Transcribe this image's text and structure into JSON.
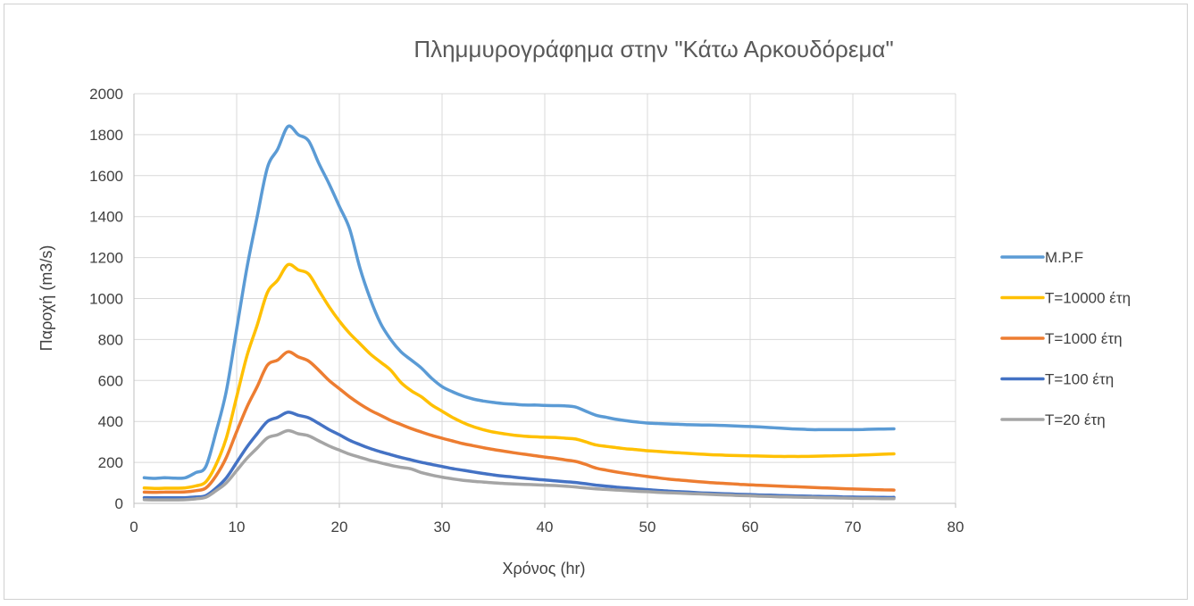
{
  "chart_data": {
    "type": "line",
    "title": "Πλημμυρογράφημα στην \"Κάτω Αρκουδόρεμα\"",
    "xlabel": "Χρόνος (hr)",
    "ylabel": "Παροχή (m3/s)",
    "xlim": [
      0,
      80
    ],
    "ylim": [
      0,
      2000
    ],
    "xticks": [
      "0",
      "10",
      "20",
      "30",
      "40",
      "50",
      "60",
      "70",
      "80"
    ],
    "yticks": [
      "0",
      "200",
      "400",
      "600",
      "800",
      "1000",
      "1200",
      "1400",
      "1600",
      "1800",
      "2000"
    ],
    "grid": true,
    "legend_position": "right",
    "x": [
      1,
      2,
      3,
      4,
      5,
      6,
      7,
      8,
      9,
      10,
      11,
      12,
      13,
      14,
      15,
      16,
      17,
      18,
      19,
      20,
      21,
      22,
      23,
      24,
      25,
      26,
      27,
      28,
      29,
      30,
      31,
      32,
      33,
      34,
      35,
      36,
      37,
      38,
      39,
      40,
      41,
      42,
      43,
      44,
      45,
      46,
      47,
      48,
      49,
      50,
      51,
      52,
      53,
      54,
      55,
      56,
      57,
      58,
      59,
      60,
      61,
      62,
      63,
      64,
      65,
      66,
      67,
      68,
      69,
      70,
      71,
      72,
      73,
      74
    ],
    "series": [
      {
        "name": "M.P.F",
        "color": "#5b9bd5",
        "values": [
          125,
          122,
          125,
          123,
          125,
          150,
          180,
          350,
          550,
          850,
          1150,
          1400,
          1640,
          1730,
          1840,
          1800,
          1770,
          1660,
          1560,
          1450,
          1340,
          1150,
          1000,
          880,
          800,
          740,
          700,
          660,
          610,
          570,
          545,
          525,
          510,
          500,
          493,
          487,
          484,
          480,
          480,
          478,
          477,
          476,
          470,
          450,
          430,
          420,
          410,
          403,
          397,
          392,
          390,
          388,
          386,
          384,
          383,
          382,
          381,
          379,
          377,
          375,
          373,
          370,
          367,
          364,
          362,
          360,
          360,
          360,
          360,
          360,
          361,
          362,
          363,
          364
        ]
      },
      {
        "name": "T=10000 έτη",
        "color": "#ffc000",
        "values": [
          75,
          73,
          74,
          74,
          76,
          85,
          105,
          190,
          320,
          520,
          720,
          870,
          1030,
          1090,
          1165,
          1140,
          1120,
          1040,
          960,
          890,
          830,
          780,
          730,
          690,
          650,
          590,
          550,
          520,
          480,
          450,
          420,
          395,
          375,
          360,
          348,
          340,
          333,
          328,
          325,
          323,
          322,
          318,
          314,
          300,
          285,
          278,
          272,
          266,
          262,
          257,
          254,
          250,
          247,
          244,
          241,
          238,
          236,
          234,
          233,
          232,
          231,
          230,
          229,
          229,
          229,
          230,
          231,
          232,
          233,
          234,
          236,
          238,
          240,
          242
        ]
      },
      {
        "name": "T=1000 έτη",
        "color": "#ed7d31",
        "values": [
          55,
          54,
          55,
          55,
          56,
          62,
          75,
          135,
          225,
          350,
          470,
          570,
          675,
          700,
          740,
          715,
          695,
          650,
          600,
          560,
          520,
          485,
          455,
          430,
          405,
          385,
          365,
          348,
          332,
          318,
          305,
          292,
          282,
          272,
          263,
          255,
          247,
          240,
          233,
          226,
          220,
          212,
          205,
          190,
          172,
          162,
          153,
          145,
          138,
          131,
          125,
          119,
          114,
          110,
          106,
          102,
          99,
          96,
          93,
          90,
          88,
          86,
          84,
          82,
          80,
          78,
          76,
          74,
          72,
          70,
          69,
          67,
          66,
          65
        ]
      },
      {
        "name": "T=100 έτη",
        "color": "#4472c4",
        "values": [
          28,
          27,
          27,
          27,
          28,
          31,
          38,
          75,
          125,
          200,
          275,
          340,
          400,
          420,
          445,
          430,
          418,
          390,
          360,
          335,
          308,
          287,
          268,
          252,
          238,
          224,
          212,
          200,
          190,
          180,
          170,
          162,
          154,
          146,
          139,
          133,
          128,
          123,
          118,
          114,
          110,
          106,
          102,
          96,
          89,
          84,
          79,
          75,
          71,
          67,
          63,
          60,
          57,
          55,
          52,
          50,
          48,
          46,
          44,
          43,
          41,
          40,
          38,
          37,
          36,
          35,
          34,
          33,
          32,
          31,
          30,
          30,
          29,
          29
        ]
      },
      {
        "name": "T=20 έτη",
        "color": "#a5a5a5",
        "values": [
          18,
          17,
          17,
          17,
          18,
          22,
          30,
          62,
          100,
          160,
          220,
          270,
          320,
          335,
          355,
          340,
          330,
          305,
          280,
          260,
          240,
          225,
          210,
          198,
          186,
          176,
          168,
          150,
          138,
          128,
          120,
          113,
          108,
          104,
          100,
          97,
          95,
          93,
          91,
          89,
          87,
          84,
          80,
          75,
          71,
          68,
          65,
          62,
          59,
          57,
          54,
          52,
          50,
          48,
          46,
          44,
          42,
          40,
          38,
          37,
          35,
          34,
          32,
          31,
          30,
          29,
          28,
          27,
          26,
          25,
          24,
          24,
          23,
          23
        ]
      }
    ]
  }
}
